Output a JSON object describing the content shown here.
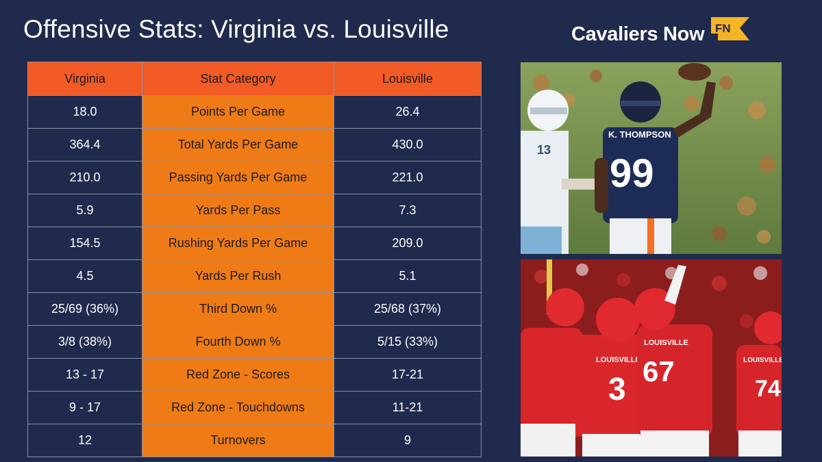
{
  "header": {
    "title": "Offensive Stats: Virginia vs. Louisville",
    "brand": "Cavaliers Now",
    "badge": "FN"
  },
  "table": {
    "columns": [
      "Virginia",
      "Stat Category",
      "Louisville"
    ],
    "rows": [
      [
        "18.0",
        "Points Per Game",
        "26.4"
      ],
      [
        "364.4",
        "Total Yards Per Game",
        "430.0"
      ],
      [
        "210.0",
        "Passing Yards Per Game",
        "221.0"
      ],
      [
        "5.9",
        "Yards Per Pass",
        "7.3"
      ],
      [
        "154.5",
        "Rushing Yards Per Game",
        "209.0"
      ],
      [
        "4.5",
        "Yards Per Rush",
        "5.1"
      ],
      [
        "25/69 (36%)",
        "Third Down %",
        "25/68 (37%)"
      ],
      [
        "3/8 (38%)",
        "Fourth Down %",
        "5/15 (33%)"
      ],
      [
        "13 - 17",
        "Red Zone - Scores",
        "17-21"
      ],
      [
        "9 - 17",
        "Red Zone - Touchdowns",
        "11-21"
      ],
      [
        "12",
        "Turnovers",
        "9"
      ]
    ]
  },
  "photos": {
    "top": {
      "jersey_numbers": [
        "99",
        "13"
      ],
      "nameplate": "K. THOMPSON"
    },
    "bottom": {
      "jersey_numbers": [
        "3",
        "67",
        "74"
      ],
      "wordmark": "LOUISVILLE"
    }
  },
  "colors": {
    "background": "#1f2a4d",
    "header_row": "#f25a26",
    "category_column": "#ef7b16",
    "grid": "#8b93a8",
    "badge": "#f5b427"
  }
}
